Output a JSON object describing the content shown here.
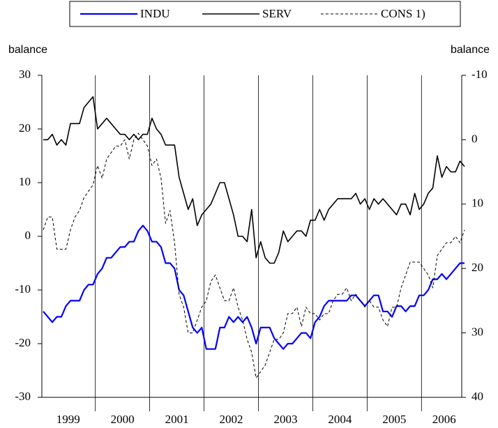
{
  "chart_data": {
    "type": "line",
    "categories": [
      null,
      null,
      null,
      null,
      null,
      null,
      "1999",
      null,
      null,
      null,
      null,
      null,
      null,
      null,
      null,
      null,
      null,
      null,
      "2000",
      null,
      null,
      null,
      null,
      null,
      null,
      null,
      null,
      null,
      null,
      null,
      "2001",
      null,
      null,
      null,
      null,
      null,
      null,
      null,
      null,
      null,
      null,
      null,
      "2002",
      null,
      null,
      null,
      null,
      null,
      null,
      null,
      null,
      null,
      null,
      null,
      "2003",
      null,
      null,
      null,
      null,
      null,
      null,
      null,
      null,
      null,
      null,
      null,
      "2004",
      null,
      null,
      null,
      null,
      null,
      null,
      null,
      null,
      null,
      null,
      null,
      "2005",
      null,
      null,
      null,
      null,
      null,
      null,
      null,
      null,
      null,
      null,
      "2006",
      null,
      null,
      null,
      null
    ],
    "series": [
      {
        "name": "INDU",
        "color": "#0000ff",
        "style": "solid",
        "values": [
          -14,
          -15,
          -16,
          -15,
          -15,
          -13,
          -12,
          -12,
          -12,
          -10,
          -9,
          -9,
          -7,
          -6,
          -4,
          -4,
          -3,
          -2,
          -2,
          -1,
          -1,
          1,
          2,
          1,
          -1,
          -1,
          -2,
          -5,
          -5,
          -6,
          -10,
          -11,
          -14,
          -17,
          -18,
          -17,
          -21,
          -21,
          -21,
          -17,
          -17,
          -15,
          -16,
          -15,
          -16,
          -15,
          -17,
          -20,
          -17,
          -17,
          -17,
          -19,
          -20,
          -21,
          -20,
          -20,
          -19,
          -18,
          -18,
          -19,
          -16,
          -15,
          -13,
          -12,
          -12,
          -12,
          -12,
          -12,
          -11,
          -11,
          -12,
          -13,
          -12,
          -11,
          -11,
          -14,
          -14,
          -15,
          -13,
          -13,
          -14,
          -13,
          -13,
          -11,
          -11,
          -10,
          -8,
          -8,
          -7,
          -8,
          -7,
          -6,
          -5,
          -5
        ]
      },
      {
        "name": "SERV",
        "color": "#000000",
        "style": "solid",
        "values": [
          18,
          18,
          19,
          17,
          18,
          17,
          21,
          21,
          21,
          24,
          25,
          26,
          20,
          21,
          22,
          21,
          20,
          19,
          19,
          18,
          19,
          18,
          19,
          19,
          22,
          20,
          19,
          17,
          17,
          17,
          11,
          8,
          5,
          7,
          2,
          4,
          5,
          6,
          8,
          10,
          10,
          7,
          4,
          0,
          0,
          -1,
          5,
          -4,
          -1,
          -4,
          -5,
          -5,
          -3,
          1,
          -1,
          0,
          1,
          1,
          0,
          3,
          3,
          5,
          3,
          5,
          6,
          7,
          7,
          7,
          7,
          8,
          6,
          7,
          5,
          7,
          6,
          7,
          6,
          5,
          4,
          6,
          6,
          4,
          8,
          5,
          6,
          8,
          9,
          15,
          11,
          13,
          12,
          12,
          14,
          13
        ]
      },
      {
        "name": "CONS 1)",
        "color": "#000000",
        "style": "dashed",
        "axis": "y2",
        "values": [
          14,
          12,
          12,
          17,
          17,
          17,
          14,
          12,
          11,
          9,
          8,
          7,
          4,
          6,
          3,
          2,
          1,
          1,
          0,
          3,
          0,
          -1,
          0,
          1,
          4,
          3,
          6,
          13,
          11,
          16,
          24,
          26,
          30,
          30,
          28,
          26,
          25,
          22,
          21,
          23,
          25,
          25,
          23,
          26,
          28,
          31,
          33,
          37,
          36,
          35,
          33,
          31,
          31,
          30,
          27,
          27,
          26,
          29,
          26,
          27,
          27,
          28,
          27,
          27,
          25,
          24,
          24,
          23,
          25,
          24,
          25,
          26,
          25,
          26,
          26,
          28,
          29,
          26,
          26,
          23,
          21,
          19,
          19,
          19,
          20,
          21,
          23,
          18,
          17,
          16,
          16,
          15,
          16,
          14
        ]
      }
    ],
    "y_label": "balance",
    "y2_label": "balance",
    "ylim": [
      -30,
      30
    ],
    "yticks": [
      -30,
      -20,
      -10,
      0,
      10,
      20,
      30
    ],
    "y2lim": [
      -10,
      40
    ],
    "y2ticks": [
      -10,
      0,
      10,
      20,
      30,
      40
    ],
    "y2_reversed": true,
    "legend": "top"
  }
}
